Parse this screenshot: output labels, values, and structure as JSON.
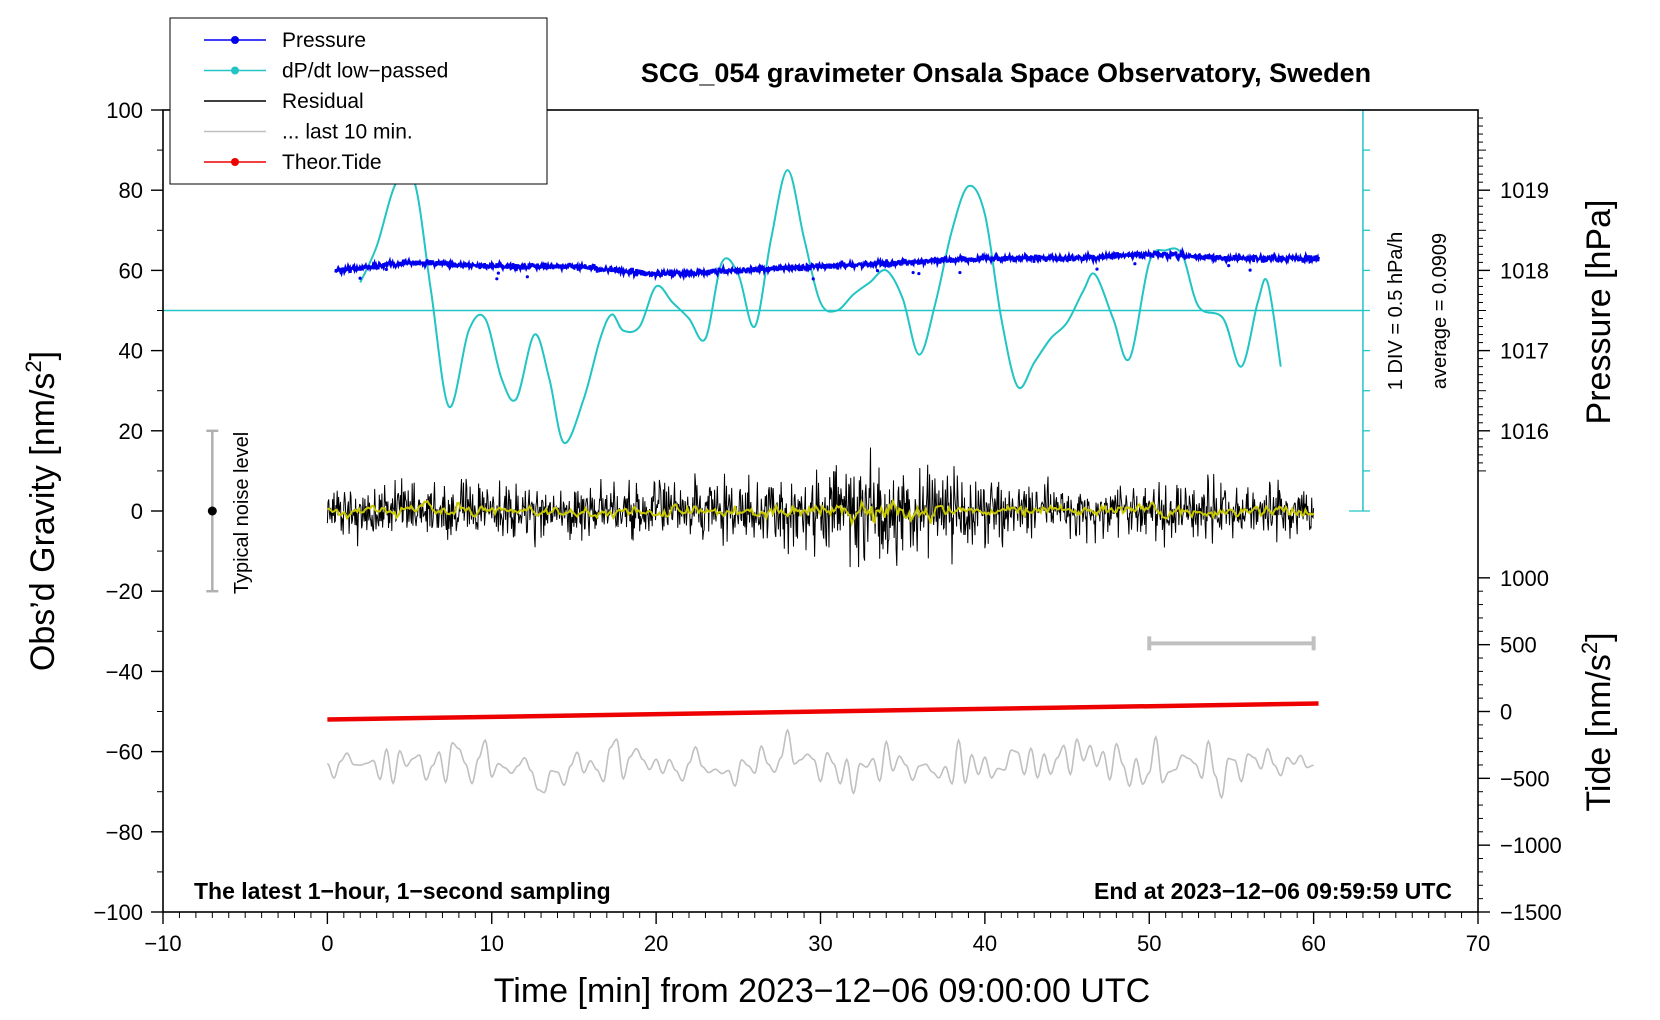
{
  "chart_data": {
    "type": "line",
    "title": "SCG_054 gravimeter Onsala Space Observatory, Sweden",
    "xlabel": "Time [min] from 2023−12−06 09:00:00 UTC",
    "ylabel_left": "Obs’d Gravity [nm/s²]",
    "ylabel_right_top": "Pressure [hPa]",
    "ylabel_right_bottom": "Tide [nm/s²]",
    "xlim": [
      -10,
      70
    ],
    "ylim": [
      -100,
      100
    ],
    "x_ticks": [
      -10,
      0,
      10,
      20,
      30,
      40,
      50,
      60,
      70
    ],
    "x_tick_labels": [
      "−10",
      "0",
      "10",
      "20",
      "30",
      "40",
      "50",
      "60",
      "70"
    ],
    "y_ticks": [
      -100,
      -80,
      -60,
      -40,
      -20,
      0,
      20,
      40,
      60,
      80,
      100
    ],
    "y_tick_labels": [
      "−100",
      "−80",
      "−60",
      "−40",
      "−20",
      "0",
      "20",
      "40",
      "60",
      "80",
      "100"
    ],
    "pressure_axis": {
      "ticks": [
        1016,
        1017,
        1018,
        1019
      ],
      "tick_labels": [
        "1016",
        "1017",
        "1018",
        "1019"
      ],
      "gravity_at_1016": 20,
      "gravity_per_hPa": 20
    },
    "tide_axis": {
      "ticks": [
        -1500,
        -1000,
        -500,
        0,
        500,
        1000
      ],
      "tick_labels": [
        "−1500",
        "−1000",
        "−500",
        "0",
        "500",
        "1000"
      ],
      "gravity_at_0": -50,
      "gravity_per_unit": 0.0333333
    },
    "legend": [
      {
        "label": "Pressure",
        "color": "#0000ee",
        "marker": true
      },
      {
        "label": "dP/dt low−passed",
        "color": "#22c4c4",
        "marker": true
      },
      {
        "label": "Residual",
        "color": "#000000",
        "marker": false
      },
      {
        "label": "... last 10 min.",
        "color": "#c0c0c0",
        "marker": false
      },
      {
        "label": "Theor.Tide",
        "color": "#ee0000",
        "marker": true
      }
    ],
    "series": [
      {
        "name": "Pressure",
        "color": "#0000ee",
        "x": [
          0.5,
          5,
          10,
          15,
          20,
          25,
          30,
          35,
          40,
          45,
          50,
          55,
          60.3
        ],
        "y": [
          1018.0,
          1018.1,
          1018.05,
          1018.05,
          1017.95,
          1018.0,
          1018.05,
          1018.1,
          1018.15,
          1018.15,
          1018.2,
          1018.15,
          1018.15
        ]
      },
      {
        "name": "dP/dt low-passed",
        "color": "#22c4c4",
        "x": [
          2,
          3,
          4.2,
          5.3,
          6.3,
          7.4,
          8.6,
          9.6,
          10.6,
          11.5,
          12.6,
          13.5,
          14.4,
          15.6,
          16.6,
          17.3,
          18,
          19,
          20,
          21,
          22,
          23,
          24,
          25,
          26,
          27,
          28,
          29,
          30,
          31,
          32,
          33,
          34,
          35,
          36,
          37,
          38,
          39,
          40,
          41,
          42,
          43,
          44,
          45,
          46,
          46.7,
          47.8,
          48.8,
          50,
          51,
          52,
          53,
          54.5,
          55.6,
          56.6,
          57.2,
          58
        ],
        "y": [
          57,
          66,
          82,
          82,
          55,
          26,
          45,
          48,
          33,
          28,
          44,
          33,
          17,
          28,
          43,
          49,
          45,
          46,
          56,
          52,
          48,
          43,
          62,
          59,
          46,
          68,
          85,
          68,
          52,
          50,
          54,
          57,
          60,
          53,
          39,
          52,
          70,
          81,
          74,
          48,
          31,
          37,
          43,
          47,
          55,
          59,
          48,
          38,
          62,
          65,
          64,
          51,
          48,
          36,
          52,
          57,
          36
        ]
      },
      {
        "name": "Residual",
        "color": "#000000",
        "x_range": [
          0,
          60
        ],
        "amplitude": 5,
        "peak_range": [
          -14,
          18
        ]
      },
      {
        "name": "... last 10 min.",
        "color": "#c0c0c0",
        "x_range": [
          0,
          60
        ],
        "baseline": -63,
        "peak_range": [
          -75,
          -49
        ]
      },
      {
        "name": "Residual smoothed",
        "color": "#c8c800",
        "x_range": [
          0,
          60
        ],
        "amplitude": 1
      },
      {
        "name": "Theor.Tide",
        "color": "#ee0000",
        "x": [
          0,
          60.3
        ],
        "y": [
          -52,
          -48
        ]
      }
    ],
    "reference_line": {
      "name": "dP/dt zero line",
      "y": 50,
      "color": "#22c4c4"
    },
    "dpdt_scale_bar": {
      "x": 63,
      "y_from": 0,
      "y_to": 100,
      "div": 10
    },
    "noise_level": {
      "label": "Typical noise level",
      "x": -7,
      "center": 0,
      "low": -20,
      "high": 20
    },
    "last10_bar": {
      "x_from": 50,
      "x_to": 60,
      "y": -33
    },
    "annotations": {
      "div_text": "1 DIV = 0.5 hPa/h",
      "average_text": "average = 0.0909",
      "footer_left": "The latest 1−hour, 1−second sampling",
      "footer_right": "End at 2023−12−06 09:59:59 UTC"
    },
    "colors": {
      "pressure": "#0000ee",
      "dpdt": "#22c4c4",
      "residual": "#000000",
      "last10": "#c0c0c0",
      "tide": "#ee0000",
      "smoothed": "#c8c800",
      "noise": "#000000"
    }
  }
}
